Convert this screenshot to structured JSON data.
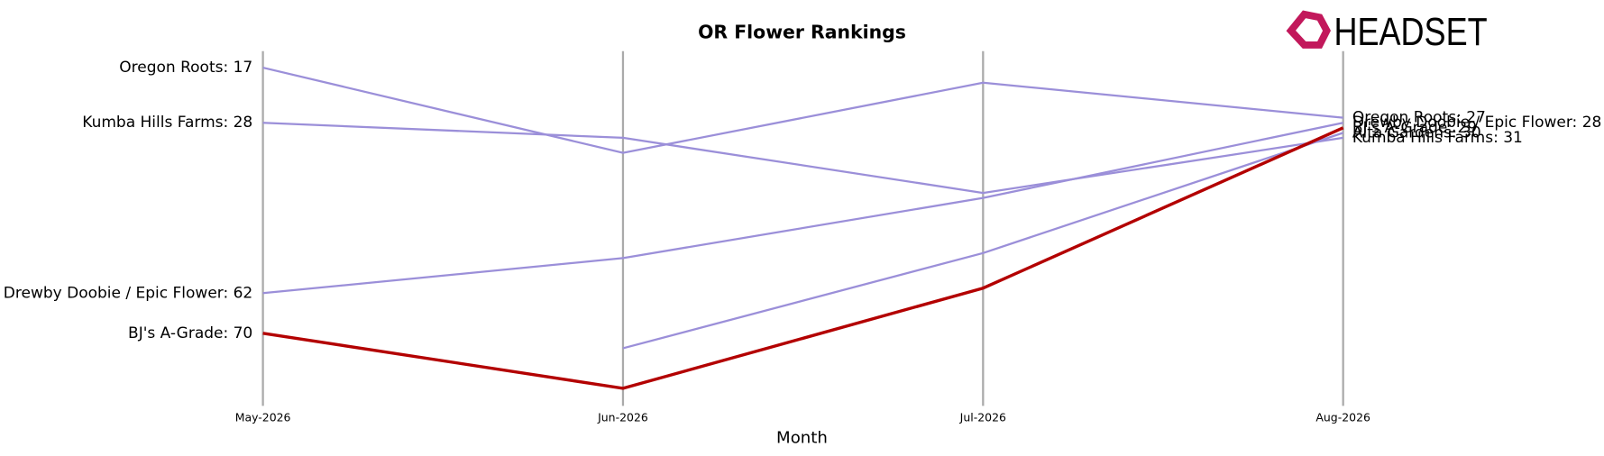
{
  "logo_text": "HEADSET",
  "chart_data": {
    "type": "line",
    "title": "OR Flower Rankings",
    "x_label": "Month",
    "categories": [
      "May-2026",
      "Jun-2026",
      "Jul-2026",
      "Aug-2026"
    ],
    "ylim": [
      84.5,
      13.7
    ],
    "grid": true,
    "series": [
      {
        "name": "Oregon Roots",
        "color": "#9b8fd9",
        "values": [
          17,
          34,
          20,
          27
        ],
        "value_labels": [
          "Oregon Roots: 17",
          null,
          null,
          "Oregon Roots: 27"
        ]
      },
      {
        "name": "Kumba Hills Farms",
        "color": "#9b8fd9",
        "values": [
          28,
          31,
          42,
          31
        ],
        "value_labels": [
          "Kumba Hills Farms: 28",
          null,
          null,
          "Kumba Hills Farms: 31"
        ]
      },
      {
        "name": "Drewby Doobie / Epic Flower",
        "color": "#9b8fd9",
        "values": [
          62,
          55,
          43,
          28
        ],
        "value_labels": [
          "Drewby Doobie / Epic Flower: 62",
          null,
          null,
          "Drewby Doobie / Epic Flower: 28"
        ]
      },
      {
        "name": "Alta Gardens",
        "color": "#9b8fd9",
        "values": [
          null,
          73,
          54,
          30
        ],
        "value_labels": [
          null,
          null,
          null,
          "Alta Gardens: 30"
        ]
      },
      {
        "name": "BJ's A-Grade",
        "color": "#b30000",
        "values": [
          70,
          81,
          61,
          29
        ],
        "value_labels": [
          "BJ's A-Grade: 70",
          null,
          null,
          "BJ's A-Grade: 29"
        ]
      }
    ]
  }
}
